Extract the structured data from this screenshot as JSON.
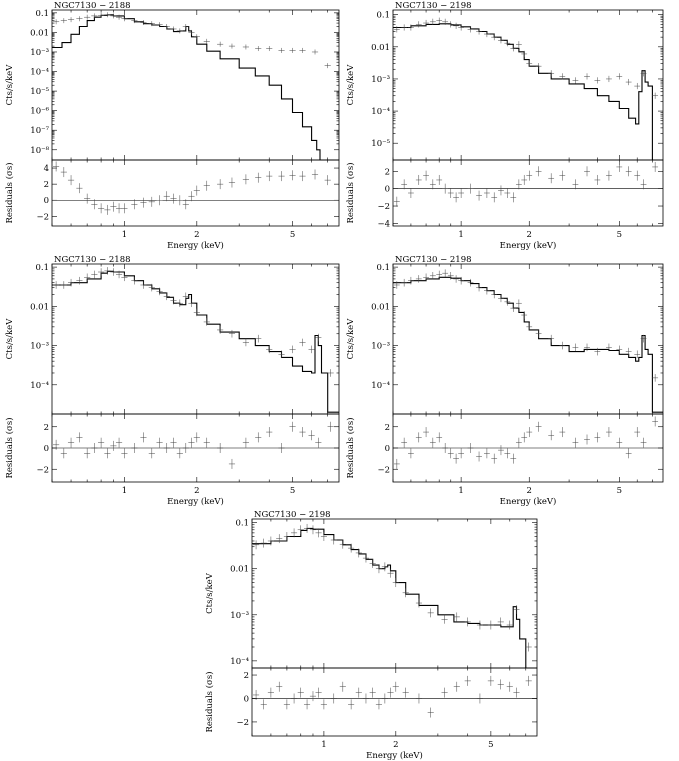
{
  "chart_data": [
    {
      "type": "scatter",
      "title": "NGC7130 − 2188",
      "xlabel": "Energy (keV)",
      "ylabel": "Cts/s/keV",
      "res_ylabel": "Residuals (σs)",
      "xlim": [
        0.5,
        7.8
      ],
      "xscale": "log",
      "xticks": [
        1,
        2,
        5
      ],
      "xticklabels": [
        "1",
        "2",
        "5"
      ],
      "ylim": [
        3e-09,
        0.14
      ],
      "yscale": "log",
      "yticks": [
        0.1,
        0.01,
        0.001,
        0.0001,
        1e-05,
        1e-06,
        1e-07,
        1e-08
      ],
      "yticklabels": [
        "0.1",
        "0.01",
        "10⁻³",
        "10⁻⁴",
        "10⁻⁵",
        "10⁻⁶",
        "10⁻⁷",
        "10⁻⁸"
      ],
      "res_ylim": [
        -3.2,
        5
      ],
      "res_yticks": [
        -2,
        0,
        2,
        4
      ],
      "res_yticklabels": [
        "−2",
        "0",
        "2",
        "4"
      ],
      "model": {
        "x": [
          0.5,
          0.55,
          0.6,
          0.65,
          0.7,
          0.75,
          0.8,
          0.85,
          0.9,
          1.0,
          1.1,
          1.2,
          1.3,
          1.4,
          1.5,
          1.6,
          1.7,
          1.8,
          1.85,
          1.9,
          2.0,
          2.2,
          2.5,
          3.0,
          3.5,
          4.0,
          4.5,
          5.0,
          5.5,
          6.0,
          6.3,
          6.5,
          7.0,
          7.8
        ],
        "y": [
          0.0017,
          0.003,
          0.008,
          0.02,
          0.04,
          0.06,
          0.075,
          0.08,
          0.07,
          0.05,
          0.035,
          0.028,
          0.024,
          0.02,
          0.015,
          0.011,
          0.012,
          0.02,
          0.012,
          0.006,
          0.0025,
          0.0011,
          0.00045,
          0.00015,
          6e-05,
          2e-05,
          4e-06,
          8e-07,
          1.5e-07,
          3e-08,
          1e-08,
          3e-09,
          3e-09,
          3e-09
        ]
      },
      "data": {
        "x": [
          0.52,
          0.56,
          0.6,
          0.65,
          0.7,
          0.75,
          0.8,
          0.85,
          0.9,
          0.95,
          1.0,
          1.1,
          1.2,
          1.3,
          1.4,
          1.5,
          1.6,
          1.7,
          1.8,
          1.9,
          2.0,
          2.2,
          2.5,
          2.8,
          3.2,
          3.6,
          4.0,
          4.5,
          5.0,
          5.5,
          6.2,
          7.0
        ],
        "y": [
          0.035,
          0.04,
          0.045,
          0.05,
          0.06,
          0.07,
          0.075,
          0.08,
          0.07,
          0.06,
          0.05,
          0.04,
          0.032,
          0.028,
          0.025,
          0.02,
          0.015,
          0.012,
          0.02,
          0.01,
          0.006,
          0.0035,
          0.0025,
          0.002,
          0.0018,
          0.0015,
          0.0015,
          0.0012,
          0.0012,
          0.0012,
          0.001,
          0.0002
        ]
      },
      "residuals": [
        4.2,
        3.5,
        2.5,
        1.5,
        0.2,
        -0.5,
        -1.0,
        -1.2,
        -0.8,
        -1.0,
        -1.0,
        -0.5,
        -0.3,
        -0.2,
        0.0,
        0.5,
        0.2,
        0.0,
        -0.5,
        0.5,
        1.2,
        1.8,
        2.0,
        2.2,
        2.6,
        2.8,
        3.0,
        3.0,
        3.1,
        3.0,
        3.2,
        2.5
      ]
    },
    {
      "type": "scatter",
      "title": "NGC7130 − 2198",
      "xlabel": "Energy (keV)",
      "ylabel": "Cts/s/keV",
      "res_ylabel": "Residuals (σs)",
      "xlim": [
        0.5,
        7.8
      ],
      "xscale": "log",
      "xticks": [
        1,
        2,
        5
      ],
      "xticklabels": [
        "1",
        "2",
        "5"
      ],
      "ylim": [
        3e-06,
        0.14
      ],
      "yscale": "log",
      "yticks": [
        0.1,
        0.01,
        0.001,
        0.0001,
        1e-05
      ],
      "yticklabels": [
        "0.1",
        "0.01",
        "10⁻³",
        "10⁻⁴",
        "10⁻⁵"
      ],
      "res_ylim": [
        -4.3,
        3.3
      ],
      "res_yticks": [
        -4,
        -2,
        0,
        2
      ],
      "res_yticklabels": [
        "−4",
        "−2",
        "0",
        "2"
      ],
      "model": {
        "x": [
          0.5,
          0.6,
          0.7,
          0.8,
          0.9,
          1.0,
          1.1,
          1.2,
          1.3,
          1.4,
          1.5,
          1.6,
          1.7,
          1.8,
          1.9,
          2.0,
          2.2,
          2.5,
          3.0,
          3.5,
          4.0,
          4.5,
          5.0,
          5.5,
          5.9,
          6.1,
          6.3,
          6.5,
          6.7,
          7.0,
          7.8
        ],
        "y": [
          0.04,
          0.045,
          0.05,
          0.052,
          0.048,
          0.042,
          0.036,
          0.03,
          0.025,
          0.02,
          0.016,
          0.012,
          0.009,
          0.007,
          0.004,
          0.0025,
          0.0015,
          0.001,
          0.0007,
          0.0005,
          0.0003,
          0.0002,
          0.00012,
          6e-05,
          4e-05,
          0.0004,
          0.0018,
          0.0008,
          0.0006,
          3e-06,
          3e-06
        ]
      },
      "data": {
        "x": [
          0.52,
          0.56,
          0.6,
          0.65,
          0.7,
          0.75,
          0.8,
          0.85,
          0.9,
          0.95,
          1.0,
          1.1,
          1.2,
          1.3,
          1.4,
          1.5,
          1.6,
          1.7,
          1.8,
          1.9,
          2.0,
          2.2,
          2.5,
          2.8,
          3.2,
          3.6,
          4.0,
          4.5,
          5.0,
          5.5,
          6.0,
          6.4,
          7.2
        ],
        "y": [
          0.035,
          0.04,
          0.04,
          0.05,
          0.055,
          0.06,
          0.065,
          0.06,
          0.05,
          0.045,
          0.04,
          0.035,
          0.03,
          0.025,
          0.02,
          0.016,
          0.013,
          0.009,
          0.012,
          0.006,
          0.003,
          0.0025,
          0.0015,
          0.0012,
          0.0009,
          0.0012,
          0.0009,
          0.001,
          0.0012,
          0.0008,
          0.0006,
          0.0015,
          0.0003
        ]
      },
      "residuals": [
        -1.5,
        0.5,
        -0.5,
        1.0,
        1.5,
        0.5,
        1.0,
        0.0,
        -0.5,
        -1.0,
        -0.5,
        0.0,
        -0.8,
        -0.5,
        -1.0,
        -0.2,
        -0.5,
        -1.0,
        0.5,
        1.0,
        1.5,
        2.0,
        1.2,
        1.5,
        0.5,
        2.0,
        1.0,
        1.5,
        2.5,
        2.0,
        1.5,
        0.5,
        2.5
      ]
    },
    {
      "type": "scatter",
      "title": "NGC7130 − 2188",
      "xlabel": "Energy (keV)",
      "ylabel": "Cts/s/keV",
      "res_ylabel": "Residuals (σs)",
      "xlim": [
        0.5,
        7.8
      ],
      "xscale": "log",
      "xticks": [
        1,
        2,
        5
      ],
      "xticklabels": [
        "1",
        "2",
        "5"
      ],
      "ylim": [
        1.8e-05,
        0.12
      ],
      "yscale": "log",
      "yticks": [
        0.1,
        0.01,
        0.001,
        0.0001
      ],
      "yticklabels": [
        "0.1",
        "0.01",
        "10⁻³",
        "10⁻⁴"
      ],
      "res_ylim": [
        -3.2,
        3.2
      ],
      "res_yticks": [
        -2,
        0,
        2
      ],
      "res_yticklabels": [
        "−2",
        "0",
        "2"
      ],
      "model": {
        "x": [
          0.5,
          0.6,
          0.7,
          0.8,
          0.85,
          0.9,
          1.0,
          1.1,
          1.2,
          1.3,
          1.4,
          1.5,
          1.6,
          1.7,
          1.8,
          1.85,
          1.9,
          2.0,
          2.2,
          2.5,
          3.0,
          3.5,
          4.0,
          4.5,
          5.0,
          5.5,
          6.0,
          6.2,
          6.4,
          6.6,
          7.0,
          7.8
        ],
        "y": [
          0.035,
          0.04,
          0.05,
          0.07,
          0.078,
          0.075,
          0.06,
          0.045,
          0.035,
          0.028,
          0.022,
          0.017,
          0.012,
          0.011,
          0.016,
          0.02,
          0.012,
          0.006,
          0.0035,
          0.0022,
          0.0015,
          0.001,
          0.0007,
          0.0005,
          0.0003,
          0.00022,
          0.0002,
          0.0018,
          0.001,
          0.0002,
          2e-05,
          2e-05
        ]
      },
      "data": {
        "x": [
          0.52,
          0.56,
          0.6,
          0.65,
          0.7,
          0.75,
          0.8,
          0.85,
          0.9,
          0.95,
          1.0,
          1.1,
          1.2,
          1.3,
          1.4,
          1.5,
          1.6,
          1.7,
          1.8,
          1.9,
          2.0,
          2.2,
          2.5,
          2.8,
          3.2,
          3.6,
          4.0,
          4.5,
          5.0,
          5.5,
          6.0,
          6.4,
          7.2
        ],
        "y": [
          0.035,
          0.035,
          0.04,
          0.045,
          0.055,
          0.065,
          0.075,
          0.08,
          0.075,
          0.065,
          0.055,
          0.045,
          0.035,
          0.03,
          0.024,
          0.018,
          0.014,
          0.012,
          0.018,
          0.012,
          0.007,
          0.004,
          0.0025,
          0.002,
          0.0012,
          0.0015,
          0.0008,
          0.0006,
          0.0008,
          0.0012,
          0.0008,
          0.0016,
          0.0002
        ]
      },
      "residuals": [
        0.3,
        -0.5,
        0.5,
        1.0,
        -0.5,
        0.0,
        0.5,
        -0.5,
        0.2,
        0.5,
        -0.5,
        0.0,
        1.0,
        -0.5,
        0.5,
        0.0,
        0.5,
        -0.5,
        0.0,
        0.5,
        1.0,
        0.5,
        0.0,
        -1.5,
        0.5,
        1.0,
        1.5,
        0.0,
        2.0,
        1.5,
        1.2,
        0.5,
        2.0
      ]
    },
    {
      "type": "scatter",
      "title": "NGC7130 − 2198",
      "xlabel": "Energy (keV)",
      "ylabel": "Cts/s/keV",
      "res_ylabel": "Residuals (σs)",
      "xlim": [
        0.5,
        7.8
      ],
      "xscale": "log",
      "xticks": [
        1,
        2,
        5
      ],
      "xticklabels": [
        "1",
        "2",
        "5"
      ],
      "ylim": [
        1.8e-05,
        0.12
      ],
      "yscale": "log",
      "yticks": [
        0.1,
        0.01,
        0.001,
        0.0001
      ],
      "yticklabels": [
        "0.1",
        "0.01",
        "10⁻³",
        "10⁻⁴"
      ],
      "res_ylim": [
        -3.2,
        3.2
      ],
      "res_yticks": [
        -2,
        0,
        2
      ],
      "res_yticklabels": [
        "−2",
        "0",
        "2"
      ],
      "model": {
        "x": [
          0.5,
          0.6,
          0.7,
          0.8,
          0.9,
          1.0,
          1.1,
          1.2,
          1.3,
          1.4,
          1.5,
          1.6,
          1.7,
          1.8,
          1.9,
          2.0,
          2.2,
          2.5,
          3.0,
          3.5,
          4.0,
          4.5,
          5.0,
          5.5,
          5.9,
          6.1,
          6.3,
          6.5,
          6.7,
          7.0,
          7.8
        ],
        "y": [
          0.04,
          0.045,
          0.05,
          0.055,
          0.052,
          0.045,
          0.038,
          0.03,
          0.025,
          0.02,
          0.016,
          0.012,
          0.009,
          0.007,
          0.004,
          0.0025,
          0.0015,
          0.001,
          0.0007,
          0.0008,
          0.0008,
          0.00075,
          0.0006,
          0.0005,
          0.0004,
          0.0005,
          0.0018,
          0.0008,
          0.0006,
          2e-05,
          2e-05
        ]
      },
      "data": {
        "x": [
          0.52,
          0.56,
          0.6,
          0.65,
          0.7,
          0.75,
          0.8,
          0.85,
          0.9,
          0.95,
          1.0,
          1.1,
          1.2,
          1.3,
          1.4,
          1.5,
          1.6,
          1.7,
          1.8,
          1.9,
          2.0,
          2.2,
          2.5,
          2.8,
          3.2,
          3.6,
          4.0,
          4.5,
          5.0,
          5.5,
          6.0,
          6.4,
          7.2
        ],
        "y": [
          0.035,
          0.04,
          0.045,
          0.05,
          0.055,
          0.06,
          0.065,
          0.07,
          0.06,
          0.05,
          0.045,
          0.04,
          0.03,
          0.025,
          0.02,
          0.016,
          0.013,
          0.009,
          0.012,
          0.006,
          0.003,
          0.002,
          0.0015,
          0.001,
          0.0009,
          0.0009,
          0.0007,
          0.0009,
          0.0008,
          0.0007,
          0.0006,
          0.0015,
          0.00015
        ]
      },
      "residuals": [
        -1.5,
        0.5,
        -0.5,
        1.0,
        1.5,
        0.5,
        1.0,
        0.0,
        -0.5,
        -1.0,
        -0.5,
        0.0,
        -0.8,
        -0.5,
        -1.0,
        -0.2,
        -0.5,
        -1.0,
        0.5,
        1.0,
        1.5,
        2.0,
        1.2,
        1.5,
        0.5,
        0.8,
        1.0,
        1.5,
        0.5,
        -0.5,
        1.5,
        0.5,
        2.5
      ]
    },
    {
      "type": "scatter",
      "title": "NGC7130 − 2198",
      "xlabel": "Energy (keV)",
      "ylabel": "Cts/s/keV",
      "res_ylabel": "Residuals (σs)",
      "xlim": [
        0.5,
        7.8
      ],
      "xscale": "log",
      "xticks": [
        1,
        2,
        5
      ],
      "xticklabels": [
        "1",
        "2",
        "5"
      ],
      "ylim": [
        7e-05,
        0.12
      ],
      "yscale": "log",
      "yticks": [
        0.1,
        0.01,
        0.001,
        0.0001
      ],
      "yticklabels": [
        "0.1",
        "0.01",
        "10⁻³",
        "10⁻⁴"
      ],
      "res_ylim": [
        -3.2,
        2.6
      ],
      "res_yticks": [
        -2,
        0,
        2
      ],
      "res_yticklabels": [
        "−2",
        "0",
        "2"
      ],
      "model": {
        "x": [
          0.5,
          0.6,
          0.7,
          0.8,
          0.85,
          0.9,
          1.0,
          1.1,
          1.2,
          1.3,
          1.4,
          1.5,
          1.6,
          1.7,
          1.8,
          1.85,
          1.9,
          2.0,
          2.2,
          2.5,
          3.0,
          3.5,
          4.0,
          4.5,
          5.0,
          5.5,
          6.0,
          6.2,
          6.4,
          6.6,
          7.0,
          7.8
        ],
        "y": [
          0.035,
          0.04,
          0.05,
          0.068,
          0.075,
          0.072,
          0.055,
          0.042,
          0.033,
          0.026,
          0.021,
          0.016,
          0.012,
          0.01,
          0.011,
          0.012,
          0.009,
          0.005,
          0.0028,
          0.0016,
          0.001,
          0.0007,
          0.00065,
          0.0006,
          0.0006,
          0.00055,
          0.00055,
          0.0015,
          0.0008,
          0.0003,
          7e-05,
          7e-05
        ]
      },
      "data": {
        "x": [
          0.52,
          0.56,
          0.6,
          0.65,
          0.7,
          0.75,
          0.8,
          0.85,
          0.9,
          0.95,
          1.0,
          1.1,
          1.2,
          1.3,
          1.4,
          1.5,
          1.6,
          1.7,
          1.8,
          1.9,
          2.0,
          2.2,
          2.5,
          2.8,
          3.2,
          3.6,
          4.0,
          4.5,
          5.0,
          5.5,
          6.0,
          6.4,
          7.2
        ],
        "y": [
          0.033,
          0.036,
          0.04,
          0.045,
          0.05,
          0.06,
          0.07,
          0.075,
          0.07,
          0.06,
          0.05,
          0.042,
          0.034,
          0.028,
          0.022,
          0.017,
          0.013,
          0.01,
          0.011,
          0.008,
          0.005,
          0.003,
          0.0018,
          0.0011,
          0.0008,
          0.0009,
          0.0007,
          0.0006,
          0.0006,
          0.0007,
          0.0006,
          0.0013,
          0.0002
        ]
      },
      "residuals": [
        0.3,
        -0.5,
        0.5,
        1.0,
        -0.5,
        0.0,
        0.5,
        -0.5,
        0.2,
        0.5,
        -0.5,
        0.0,
        1.0,
        -0.5,
        0.5,
        0.0,
        0.5,
        -0.5,
        0.0,
        0.5,
        1.0,
        0.5,
        0.0,
        -1.2,
        0.5,
        1.0,
        1.5,
        0.0,
        1.5,
        1.2,
        1.0,
        0.5,
        1.5
      ]
    }
  ]
}
